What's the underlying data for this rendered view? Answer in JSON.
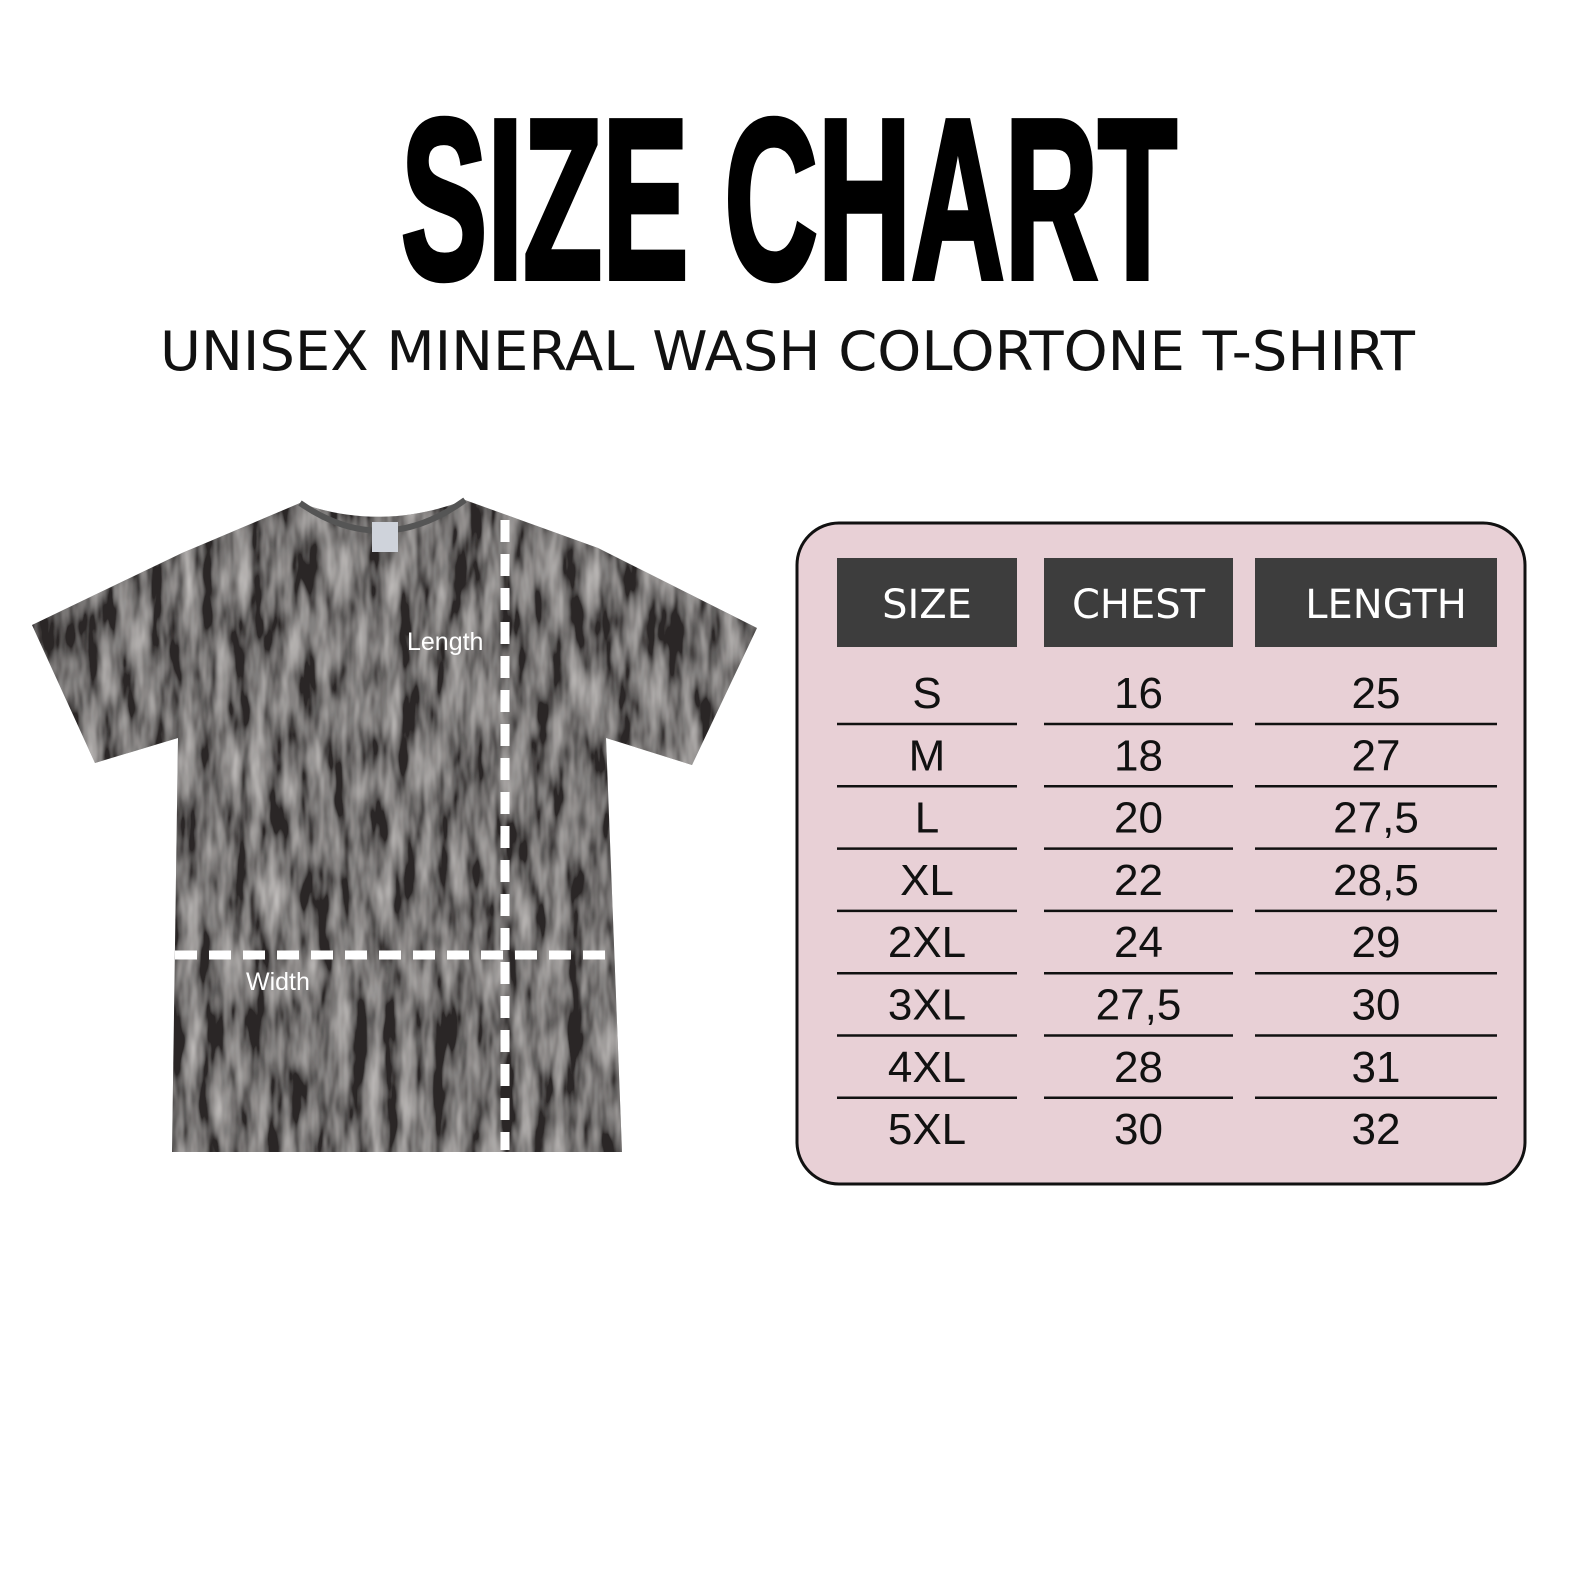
{
  "title": "SIZE CHART",
  "subtitle": "UNISEX MINERAL WASH COLORTONE T-SHIRT",
  "shirt": {
    "length_label": "Length",
    "width_label": "Width",
    "color": "#2a2828"
  },
  "table": {
    "background": "#e8d0d6",
    "header_color": "#3d3d3d",
    "headers": [
      "SIZE",
      "CHEST",
      "LENGTH"
    ],
    "rows": [
      [
        "S",
        "16",
        "25"
      ],
      [
        "M",
        "18",
        "27"
      ],
      [
        "L",
        "20",
        "27,5"
      ],
      [
        "XL",
        "22",
        "28,5"
      ],
      [
        "2XL",
        "24",
        "29"
      ],
      [
        "3XL",
        "27,5",
        "30"
      ],
      [
        "4XL",
        "28",
        "31"
      ],
      [
        "5XL",
        "30",
        "32"
      ]
    ]
  }
}
